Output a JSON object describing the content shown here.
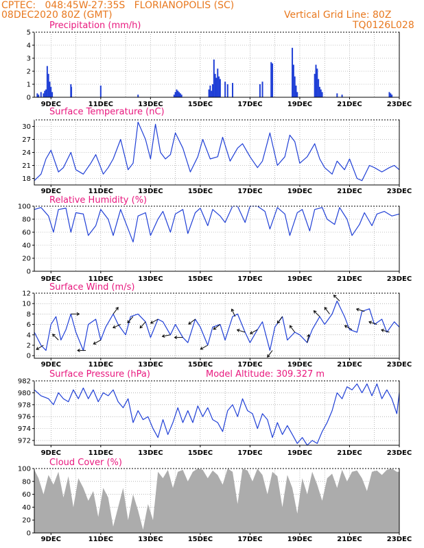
{
  "header": {
    "line1": "CPTEC:   048:45W-27:35S   FLORIANOPOLIS (SC)",
    "line2": "08DEC2020 80Z (GMT)",
    "grid_note": "Vertical Grid Line: 80Z",
    "code": "TQ0126L028"
  },
  "colors": {
    "header": "#e8781e",
    "titles": "#e8187e",
    "series": "#1f3fd6",
    "cloud": "#a9a9a9",
    "arrows": "#000000"
  },
  "x_axis": {
    "start_day": 8.33,
    "end_day": 23.0,
    "grid_days": [
      9,
      10,
      11,
      12,
      13,
      14,
      15,
      16,
      17,
      18,
      19,
      20,
      21,
      22,
      23
    ],
    "labels": [
      {
        "day": 9,
        "text": "9DEC"
      },
      {
        "day": 11,
        "text": "11DEC"
      },
      {
        "day": 13,
        "text": "13DEC"
      },
      {
        "day": 15,
        "text": "15DEC"
      },
      {
        "day": 17,
        "text": "17DEC"
      },
      {
        "day": 19,
        "text": "19DEC"
      },
      {
        "day": 21,
        "text": "21DEC"
      },
      {
        "day": 23,
        "text": "23DEC"
      }
    ]
  },
  "chart_data": [
    {
      "id": "precip",
      "type": "bar",
      "title": "Precipitation (mm/h)",
      "ylim": [
        0,
        5
      ],
      "yticks": [
        0,
        1,
        2,
        3,
        4,
        5
      ],
      "x": [
        8.45,
        8.5,
        8.6,
        8.7,
        8.75,
        8.8,
        8.85,
        8.9,
        8.95,
        9.0,
        9.05,
        9.8,
        9.82,
        11.0,
        12.5,
        13.95,
        14.0,
        14.05,
        14.1,
        14.15,
        14.2,
        14.25,
        15.35,
        15.4,
        15.45,
        15.5,
        15.55,
        15.6,
        15.65,
        15.7,
        15.75,
        15.8,
        16.0,
        16.1,
        16.3,
        17.4,
        17.5,
        17.85,
        17.9,
        18.7,
        18.75,
        18.8,
        18.85,
        18.9,
        19.6,
        19.65,
        19.7,
        19.75,
        19.8,
        19.85,
        19.9,
        20.5,
        20.7,
        22.6,
        22.65,
        22.7
      ],
      "values": [
        0.3,
        0.2,
        0.4,
        0.3,
        0.5,
        0.6,
        2.4,
        1.8,
        1.2,
        0.8,
        0.4,
        1.0,
        0.8,
        0.9,
        0.2,
        0.2,
        0.4,
        0.6,
        0.5,
        0.4,
        0.3,
        0.2,
        0.6,
        0.9,
        0.5,
        1.0,
        2.9,
        1.8,
        1.5,
        2.2,
        1.6,
        1.4,
        1.2,
        1.0,
        1.1,
        1.0,
        1.2,
        2.7,
        2.6,
        3.8,
        2.5,
        1.6,
        0.9,
        0.4,
        1.8,
        2.5,
        2.2,
        1.4,
        0.8,
        0.6,
        0.4,
        0.3,
        0.2,
        0.4,
        0.3,
        0.2
      ]
    },
    {
      "id": "temp",
      "type": "line",
      "title": "Surface Temperature (nC)",
      "ylim": [
        16.5,
        31.5
      ],
      "yticks": [
        18,
        21,
        24,
        27,
        30
      ],
      "x": [
        8.33,
        8.6,
        8.8,
        9.0,
        9.3,
        9.5,
        9.8,
        10.0,
        10.3,
        10.6,
        10.8,
        11.1,
        11.3,
        11.5,
        11.8,
        12.1,
        12.3,
        12.5,
        12.8,
        13.0,
        13.2,
        13.4,
        13.6,
        13.8,
        14.0,
        14.3,
        14.6,
        14.9,
        15.1,
        15.4,
        15.7,
        15.9,
        16.2,
        16.5,
        16.7,
        17.0,
        17.3,
        17.5,
        17.8,
        18.1,
        18.4,
        18.6,
        18.8,
        19.0,
        19.3,
        19.6,
        19.8,
        20.0,
        20.3,
        20.5,
        20.8,
        21.0,
        21.3,
        21.5,
        21.8,
        22.0,
        22.3,
        22.6,
        22.8,
        23.0
      ],
      "values": [
        17.5,
        19.0,
        22.5,
        24.5,
        19.5,
        20.5,
        24.0,
        20.0,
        19.0,
        21.5,
        23.5,
        19.0,
        20.5,
        22.5,
        27.0,
        20.0,
        21.5,
        31.0,
        27.0,
        22.5,
        30.5,
        24.0,
        22.5,
        23.5,
        28.5,
        25.0,
        19.5,
        23.0,
        27.0,
        22.5,
        23.0,
        27.5,
        22.0,
        25.0,
        26.0,
        23.0,
        20.5,
        22.0,
        28.5,
        21.0,
        23.0,
        28.0,
        26.5,
        21.5,
        23.0,
        26.0,
        22.5,
        20.5,
        19.0,
        22.0,
        20.0,
        22.5,
        18.0,
        17.5,
        21.0,
        20.5,
        19.5,
        20.5,
        21.0,
        20.0
      ]
    },
    {
      "id": "rh",
      "type": "line",
      "title": "Relative Humidity (%)",
      "ylim": [
        0,
        100
      ],
      "yticks": [
        0,
        20,
        40,
        60,
        80,
        100
      ],
      "x": [
        8.33,
        8.6,
        8.9,
        9.1,
        9.3,
        9.6,
        9.8,
        10.0,
        10.3,
        10.5,
        10.8,
        11.0,
        11.3,
        11.5,
        11.8,
        12.0,
        12.3,
        12.5,
        12.8,
        13.0,
        13.3,
        13.5,
        13.8,
        14.0,
        14.3,
        14.5,
        14.8,
        15.0,
        15.3,
        15.5,
        15.8,
        16.0,
        16.3,
        16.5,
        16.8,
        17.0,
        17.3,
        17.6,
        17.8,
        18.1,
        18.4,
        18.6,
        18.9,
        19.1,
        19.4,
        19.6,
        19.9,
        20.1,
        20.4,
        20.6,
        20.9,
        21.1,
        21.4,
        21.6,
        21.9,
        22.1,
        22.4,
        22.7,
        23.0
      ],
      "values": [
        95,
        98,
        85,
        60,
        95,
        97,
        60,
        90,
        88,
        55,
        70,
        95,
        80,
        55,
        95,
        75,
        45,
        85,
        90,
        55,
        80,
        92,
        60,
        88,
        95,
        58,
        90,
        97,
        70,
        95,
        85,
        75,
        100,
        100,
        75,
        100,
        100,
        92,
        65,
        98,
        88,
        55,
        90,
        95,
        62,
        95,
        98,
        80,
        72,
        98,
        80,
        55,
        72,
        90,
        70,
        88,
        92,
        85,
        88
      ]
    },
    {
      "id": "wind",
      "type": "line",
      "title": "Surface Wind (m/s)",
      "ylim": [
        -0.5,
        12
      ],
      "yticks": [
        0,
        2,
        4,
        6,
        8,
        10,
        12
      ],
      "x": [
        8.33,
        8.6,
        8.8,
        9.0,
        9.2,
        9.4,
        9.6,
        9.8,
        10.0,
        10.3,
        10.5,
        10.8,
        11.0,
        11.2,
        11.5,
        11.7,
        12.0,
        12.2,
        12.5,
        12.8,
        13.0,
        13.3,
        13.5,
        13.8,
        14.0,
        14.3,
        14.5,
        14.8,
        15.0,
        15.3,
        15.5,
        15.8,
        16.0,
        16.3,
        16.5,
        16.8,
        17.0,
        17.3,
        17.5,
        17.8,
        18.0,
        18.3,
        18.5,
        18.8,
        19.0,
        19.3,
        19.5,
        19.8,
        20.0,
        20.3,
        20.5,
        20.8,
        21.0,
        21.3,
        21.5,
        21.8,
        22.0,
        22.3,
        22.5,
        22.8,
        23.0
      ],
      "values": [
        4.5,
        2.0,
        1.0,
        6.0,
        7.5,
        3.0,
        5.0,
        8.0,
        4.5,
        1.0,
        6.0,
        7.0,
        3.0,
        5.5,
        8.0,
        6.0,
        4.0,
        7.5,
        8.0,
        6.5,
        3.5,
        7.0,
        6.5,
        4.0,
        6.0,
        3.5,
        2.5,
        7.0,
        5.5,
        2.0,
        5.5,
        6.0,
        3.0,
        7.5,
        8.0,
        4.5,
        2.5,
        5.0,
        6.5,
        1.0,
        5.5,
        7.5,
        3.0,
        4.5,
        4.0,
        2.5,
        5.0,
        7.5,
        6.0,
        8.0,
        10.5,
        7.5,
        5.0,
        4.5,
        8.5,
        9.0,
        6.0,
        7.0,
        4.5,
        6.5,
        5.5
      ],
      "arrows": [
        {
          "day": 8.7,
          "u": -1,
          "v": -0.6
        },
        {
          "day": 9.3,
          "u": -0.8,
          "v": 0.8
        },
        {
          "day": 9.8,
          "u": 1,
          "v": 0
        },
        {
          "day": 10.4,
          "u": -1,
          "v": 0
        },
        {
          "day": 11.0,
          "u": -0.9,
          "v": -0.5
        },
        {
          "day": 11.5,
          "u": 0.6,
          "v": 0.8
        },
        {
          "day": 11.8,
          "u": -0.9,
          "v": -0.4
        },
        {
          "day": 12.3,
          "u": -0.7,
          "v": -0.8
        },
        {
          "day": 12.8,
          "u": -0.7,
          "v": -0.8
        },
        {
          "day": 13.3,
          "u": -0.9,
          "v": -0.5
        },
        {
          "day": 13.8,
          "u": -1,
          "v": -0.2
        },
        {
          "day": 14.3,
          "u": -0.8,
          "v": 0
        },
        {
          "day": 14.8,
          "u": -0.8,
          "v": -0.6
        },
        {
          "day": 15.3,
          "u": -0.9,
          "v": -0.5
        },
        {
          "day": 15.8,
          "u": -0.8,
          "v": -0.6
        },
        {
          "day": 16.4,
          "u": -0.4,
          "v": 0.9
        },
        {
          "day": 16.8,
          "u": -1,
          "v": 0.3
        },
        {
          "day": 17.3,
          "u": -0.9,
          "v": -0.5
        },
        {
          "day": 17.9,
          "u": -0.6,
          "v": -0.8
        },
        {
          "day": 18.3,
          "u": -0.6,
          "v": -0.8
        },
        {
          "day": 18.8,
          "u": -0.6,
          "v": 0.8
        },
        {
          "day": 19.3,
          "u": 0.2,
          "v": 1
        },
        {
          "day": 19.8,
          "u": -0.7,
          "v": 0.7
        },
        {
          "day": 20.2,
          "u": -0.6,
          "v": 0.8
        },
        {
          "day": 20.6,
          "u": -0.7,
          "v": 0.7
        },
        {
          "day": 21.1,
          "u": -0.9,
          "v": 0.5
        },
        {
          "day": 21.6,
          "u": -1,
          "v": 0.3
        },
        {
          "day": 22.1,
          "u": -0.9,
          "v": 0.3
        },
        {
          "day": 22.6,
          "u": -1,
          "v": 0.3
        }
      ]
    },
    {
      "id": "pressure",
      "type": "line",
      "title": "Surface Pressure (hPa)",
      "annotation": "Model Altitude: 309.327 m",
      "ylim": [
        971.2,
        982
      ],
      "yticks": [
        972,
        974,
        976,
        978,
        980,
        982
      ],
      "x": [
        8.33,
        8.6,
        8.9,
        9.1,
        9.3,
        9.5,
        9.7,
        9.9,
        10.1,
        10.3,
        10.5,
        10.7,
        10.9,
        11.1,
        11.3,
        11.5,
        11.7,
        11.9,
        12.1,
        12.3,
        12.5,
        12.7,
        12.9,
        13.1,
        13.3,
        13.5,
        13.7,
        13.9,
        14.1,
        14.3,
        14.5,
        14.7,
        14.9,
        15.1,
        15.3,
        15.5,
        15.7,
        15.9,
        16.1,
        16.3,
        16.5,
        16.7,
        16.9,
        17.1,
        17.3,
        17.5,
        17.7,
        17.9,
        18.1,
        18.3,
        18.5,
        18.7,
        18.9,
        19.1,
        19.3,
        19.5,
        19.7,
        19.9,
        20.1,
        20.3,
        20.5,
        20.7,
        20.9,
        21.1,
        21.3,
        21.5,
        21.7,
        21.9,
        22.1,
        22.3,
        22.5,
        22.7,
        22.9,
        23.0
      ],
      "values": [
        980.5,
        979.5,
        979.0,
        978.0,
        980.0,
        979.0,
        978.5,
        980.5,
        979.0,
        980.8,
        979.0,
        980.5,
        978.5,
        980.0,
        979.5,
        980.5,
        978.5,
        977.5,
        979.0,
        975.0,
        977.0,
        975.5,
        976.0,
        974.0,
        972.5,
        975.5,
        973.0,
        975.0,
        977.5,
        975.0,
        977.0,
        975.0,
        977.8,
        976.0,
        977.5,
        975.5,
        975.0,
        973.5,
        977.0,
        978.0,
        976.0,
        979.0,
        977.0,
        976.5,
        974.0,
        976.5,
        975.5,
        972.5,
        975.0,
        973.0,
        974.5,
        973.0,
        971.5,
        972.5,
        971.2,
        972.0,
        971.5,
        973.5,
        975.0,
        977.0,
        980.0,
        979.0,
        981.0,
        980.5,
        981.5,
        980.0,
        981.5,
        979.5,
        981.5,
        979.0,
        980.5,
        979.0,
        976.5,
        980.0
      ]
    },
    {
      "id": "cloud",
      "type": "area",
      "title": "Cloud Cover (%)",
      "ylim": [
        0,
        100
      ],
      "yticks": [
        0,
        20,
        40,
        60,
        80,
        100
      ],
      "x": [
        8.33,
        8.5,
        8.7,
        8.9,
        9.1,
        9.3,
        9.5,
        9.7,
        9.9,
        10.1,
        10.3,
        10.5,
        10.7,
        10.9,
        11.1,
        11.3,
        11.5,
        11.7,
        11.9,
        12.1,
        12.3,
        12.5,
        12.7,
        12.9,
        13.1,
        13.3,
        13.5,
        13.7,
        13.9,
        14.1,
        14.3,
        14.5,
        14.7,
        14.9,
        15.1,
        15.3,
        15.5,
        15.7,
        15.9,
        16.1,
        16.3,
        16.5,
        16.7,
        16.9,
        17.1,
        17.3,
        17.5,
        17.7,
        17.9,
        18.1,
        18.3,
        18.5,
        18.7,
        18.9,
        19.1,
        19.3,
        19.5,
        19.7,
        19.9,
        20.1,
        20.3,
        20.5,
        20.7,
        20.9,
        21.1,
        21.3,
        21.5,
        21.7,
        21.9,
        22.1,
        22.3,
        22.5,
        22.7,
        22.9,
        23.0
      ],
      "values": [
        98,
        85,
        60,
        90,
        75,
        95,
        55,
        88,
        40,
        85,
        70,
        50,
        65,
        25,
        70,
        55,
        10,
        40,
        70,
        20,
        60,
        35,
        5,
        45,
        20,
        95,
        85,
        98,
        70,
        95,
        98,
        80,
        95,
        100,
        98,
        85,
        97,
        90,
        75,
        100,
        95,
        45,
        100,
        97,
        80,
        100,
        90,
        60,
        95,
        88,
        40,
        90,
        70,
        30,
        85,
        60,
        95,
        75,
        50,
        85,
        92,
        70,
        98,
        80,
        95,
        97,
        85,
        65,
        95,
        97,
        90,
        98,
        100,
        95,
        95
      ]
    }
  ]
}
